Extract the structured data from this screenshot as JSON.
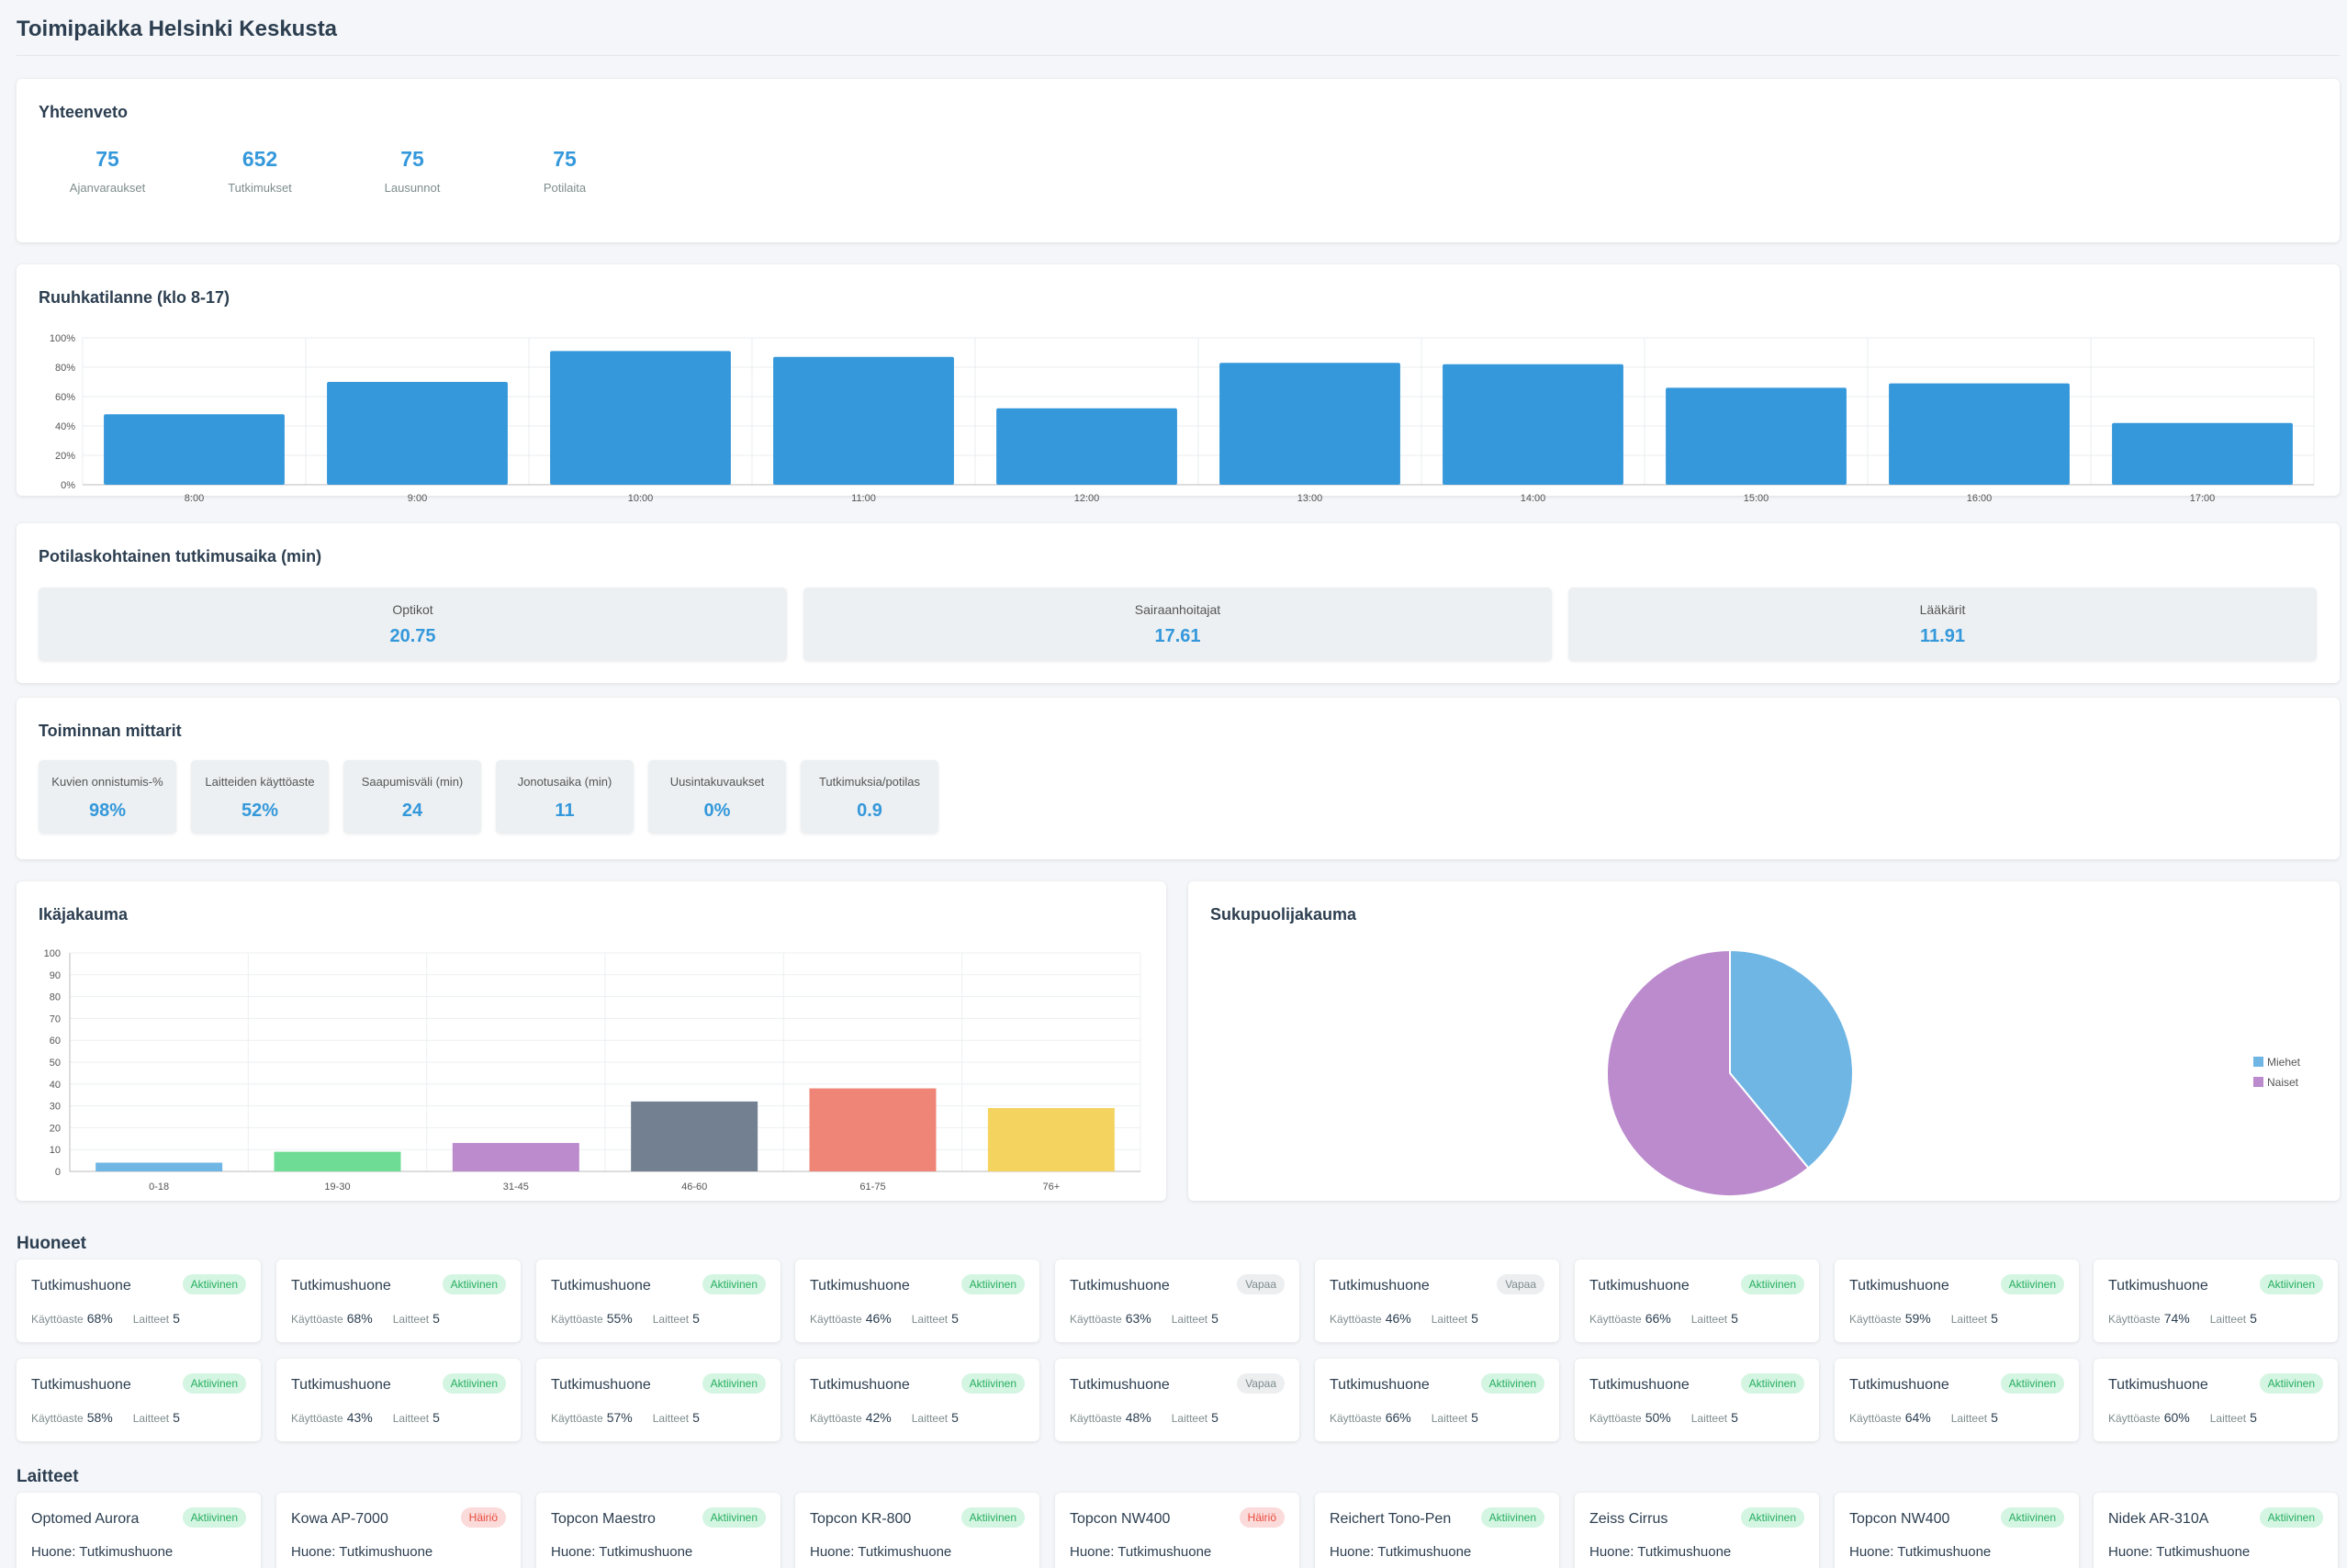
{
  "page": {
    "title": "Toimipaikka Helsinki Keskusta"
  },
  "summary": {
    "title": "Yhteenveto",
    "stats": [
      {
        "value": "75",
        "label": "Ajanvaraukset"
      },
      {
        "value": "652",
        "label": "Tutkimukset"
      },
      {
        "value": "75",
        "label": "Lausunnot"
      },
      {
        "value": "75",
        "label": "Potilaita"
      }
    ]
  },
  "rush": {
    "title": "Ruuhkatilanne (klo 8-17)",
    "color": "#3498db"
  },
  "exam_time": {
    "title": "Potilaskohtainen tutkimusaika (min)",
    "items": [
      {
        "label": "Optikot",
        "value": "20.75"
      },
      {
        "label": "Sairaanhoitajat",
        "value": "17.61"
      },
      {
        "label": "Lääkärit",
        "value": "11.91"
      }
    ]
  },
  "metrics": {
    "title": "Toiminnan mittarit",
    "items": [
      {
        "label": "Kuvien onnistumis-%",
        "value": "98%"
      },
      {
        "label": "Laitteiden käyttöaste",
        "value": "52%"
      },
      {
        "label": "Saapumisväli (min)",
        "value": "24"
      },
      {
        "label": "Jonotusaika (min)",
        "value": "11"
      },
      {
        "label": "Uusintakuvaukset",
        "value": "0%"
      },
      {
        "label": "Tutkimuksia/potilas",
        "value": "0.9"
      }
    ]
  },
  "age": {
    "title": "Ikäjakauma"
  },
  "gender": {
    "title": "Sukupuolijakauma",
    "legend": [
      {
        "label": "Miehet",
        "color": "#6fb6e4"
      },
      {
        "label": "Naiset",
        "color": "#bb8bcd"
      }
    ]
  },
  "chart_data": [
    {
      "type": "bar",
      "title": "Ruuhkatilanne (klo 8-17)",
      "categories": [
        "8:00",
        "9:00",
        "10:00",
        "11:00",
        "12:00",
        "13:00",
        "14:00",
        "15:00",
        "16:00",
        "17:00"
      ],
      "values": [
        48,
        70,
        91,
        87,
        52,
        83,
        82,
        66,
        69,
        42
      ],
      "ylim": [
        0,
        100
      ],
      "yticks": [
        "0%",
        "20%",
        "40%",
        "60%",
        "80%",
        "100%"
      ],
      "grid": true
    },
    {
      "type": "bar",
      "title": "Ikäjakauma",
      "categories": [
        "0-18",
        "19-30",
        "31-45",
        "46-60",
        "61-75",
        "76+"
      ],
      "values": [
        4,
        9,
        13,
        32,
        38,
        29
      ],
      "colors": [
        "#6fb6e4",
        "#6fdc95",
        "#bb8bcd",
        "#738091",
        "#ef8577",
        "#f4d35e"
      ],
      "ylim": [
        0,
        100
      ],
      "yticks": [
        "0",
        "10",
        "20",
        "30",
        "40",
        "50",
        "60",
        "70",
        "80",
        "90",
        "100"
      ],
      "grid": true
    },
    {
      "type": "pie",
      "title": "Sukupuolijakauma",
      "categories": [
        "Miehet",
        "Naiset"
      ],
      "values": [
        39,
        61
      ],
      "colors": [
        "#6fb6e4",
        "#bb8bcd"
      ],
      "legend_position": "right"
    }
  ],
  "rooms": {
    "title": "Huoneet",
    "usage_label": "Käyttöaste",
    "devices_label": "Laitteet",
    "items": [
      {
        "name": "Tutkimushuone",
        "status": "Aktiivinen",
        "state": "active",
        "usage": "68%",
        "devices": "5"
      },
      {
        "name": "Tutkimushuone",
        "status": "Aktiivinen",
        "state": "active",
        "usage": "68%",
        "devices": "5"
      },
      {
        "name": "Tutkimushuone",
        "status": "Aktiivinen",
        "state": "active",
        "usage": "55%",
        "devices": "5"
      },
      {
        "name": "Tutkimushuone",
        "status": "Aktiivinen",
        "state": "active",
        "usage": "46%",
        "devices": "5"
      },
      {
        "name": "Tutkimushuone",
        "status": "Vapaa",
        "state": "free",
        "usage": "63%",
        "devices": "5"
      },
      {
        "name": "Tutkimushuone",
        "status": "Vapaa",
        "state": "free",
        "usage": "46%",
        "devices": "5"
      },
      {
        "name": "Tutkimushuone",
        "status": "Aktiivinen",
        "state": "active",
        "usage": "66%",
        "devices": "5"
      },
      {
        "name": "Tutkimushuone",
        "status": "Aktiivinen",
        "state": "active",
        "usage": "59%",
        "devices": "5"
      },
      {
        "name": "Tutkimushuone",
        "status": "Aktiivinen",
        "state": "active",
        "usage": "74%",
        "devices": "5"
      },
      {
        "name": "Tutkimushuone",
        "status": "Aktiivinen",
        "state": "active",
        "usage": "58%",
        "devices": "5"
      },
      {
        "name": "Tutkimushuone",
        "status": "Aktiivinen",
        "state": "active",
        "usage": "43%",
        "devices": "5"
      },
      {
        "name": "Tutkimushuone",
        "status": "Aktiivinen",
        "state": "active",
        "usage": "57%",
        "devices": "5"
      },
      {
        "name": "Tutkimushuone",
        "status": "Aktiivinen",
        "state": "active",
        "usage": "42%",
        "devices": "5"
      },
      {
        "name": "Tutkimushuone",
        "status": "Vapaa",
        "state": "free",
        "usage": "48%",
        "devices": "5"
      },
      {
        "name": "Tutkimushuone",
        "status": "Aktiivinen",
        "state": "active",
        "usage": "66%",
        "devices": "5"
      },
      {
        "name": "Tutkimushuone",
        "status": "Aktiivinen",
        "state": "active",
        "usage": "50%",
        "devices": "5"
      },
      {
        "name": "Tutkimushuone",
        "status": "Aktiivinen",
        "state": "active",
        "usage": "64%",
        "devices": "5"
      },
      {
        "name": "Tutkimushuone",
        "status": "Aktiivinen",
        "state": "active",
        "usage": "60%",
        "devices": "5"
      }
    ]
  },
  "devices": {
    "title": "Laitteet",
    "room_label": "Huone:",
    "items": [
      {
        "name": "Optomed Aurora",
        "status": "Aktiivinen",
        "state": "active",
        "room": "Tutkimushuone"
      },
      {
        "name": "Kowa AP-7000",
        "status": "Häiriö",
        "state": "fault",
        "room": "Tutkimushuone"
      },
      {
        "name": "Topcon Maestro",
        "status": "Aktiivinen",
        "state": "active",
        "room": "Tutkimushuone"
      },
      {
        "name": "Topcon KR-800",
        "status": "Aktiivinen",
        "state": "active",
        "room": "Tutkimushuone"
      },
      {
        "name": "Topcon NW400",
        "status": "Häiriö",
        "state": "fault",
        "room": "Tutkimushuone"
      },
      {
        "name": "Reichert Tono-Pen",
        "status": "Aktiivinen",
        "state": "active",
        "room": "Tutkimushuone"
      },
      {
        "name": "Zeiss Cirrus",
        "status": "Aktiivinen",
        "state": "active",
        "room": "Tutkimushuone"
      },
      {
        "name": "Topcon NW400",
        "status": "Aktiivinen",
        "state": "active",
        "room": "Tutkimushuone"
      },
      {
        "name": "Nidek AR-310A",
        "status": "Aktiivinen",
        "state": "active",
        "room": "Tutkimushuone"
      }
    ]
  }
}
